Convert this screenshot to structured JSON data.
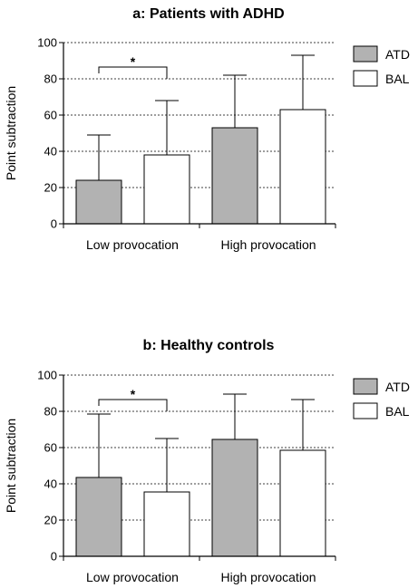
{
  "colors": {
    "ATD": "#b2b2b2",
    "BAL": "#ffffff",
    "axis": "#000000"
  },
  "chart_data": [
    {
      "type": "bar",
      "title": "a: Patients with ADHD",
      "xlabel": "",
      "ylabel": "Point subtraction",
      "ylim": [
        0,
        100
      ],
      "yticks": [
        0,
        20,
        40,
        60,
        80,
        100
      ],
      "grid": "horizontal dotted",
      "legend": "top-right",
      "categories": [
        "Low provocation",
        "High provocation"
      ],
      "series": [
        {
          "name": "ATD",
          "values": [
            24,
            53
          ],
          "errors": [
            25,
            29
          ]
        },
        {
          "name": "BAL",
          "values": [
            38,
            63
          ],
          "errors": [
            30,
            30
          ]
        }
      ],
      "significance": {
        "category": "Low provocation",
        "label": "*"
      }
    },
    {
      "type": "bar",
      "title": "b: Healthy controls",
      "xlabel": "",
      "ylabel": "Point subtraction",
      "ylim": [
        0,
        100
      ],
      "yticks": [
        0,
        20,
        40,
        60,
        80,
        100
      ],
      "grid": "horizontal dotted",
      "legend": "top-right",
      "categories": [
        "Low provocation",
        "High provocation"
      ],
      "series": [
        {
          "name": "ATD",
          "values": [
            43.5,
            64.5
          ],
          "errors": [
            35,
            25
          ]
        },
        {
          "name": "BAL",
          "values": [
            35.5,
            58.5
          ],
          "errors": [
            29.5,
            28
          ]
        }
      ],
      "significance": {
        "category": "Low provocation",
        "label": "*"
      }
    }
  ]
}
